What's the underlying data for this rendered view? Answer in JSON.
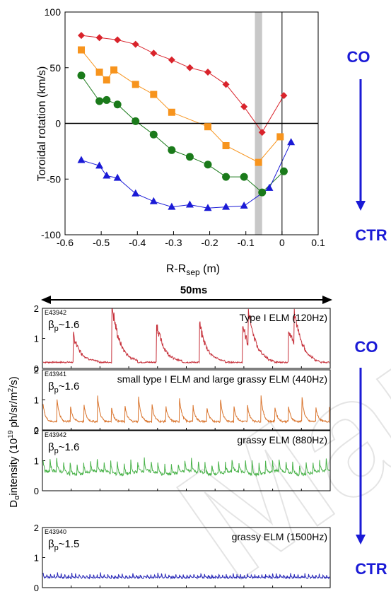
{
  "chart_data": [
    {
      "type": "line",
      "xlabel": "R-R",
      "xlabel_sub": "sep",
      "xlabel_unit": " (m)",
      "ylabel": "Toroidal rotation (km/s)",
      "xlim": [
        -0.6,
        0.1
      ],
      "ylim": [
        -100,
        100
      ],
      "x_ticks": [
        "-0.6",
        "-0.5",
        "-0.4",
        "-0.3",
        "-0.2",
        "-0.1",
        "0",
        "0.1"
      ],
      "y_ticks": [
        "-100",
        "-50",
        "0",
        "50",
        "100"
      ],
      "shaded_region": [
        -0.075,
        -0.055
      ],
      "vertical_line": 0,
      "grid": false,
      "series": [
        {
          "marker": "diamond",
          "color": "#d9232b",
          "x": [
            -0.555,
            -0.505,
            -0.455,
            -0.405,
            -0.355,
            -0.305,
            -0.255,
            -0.205,
            -0.155,
            -0.105,
            -0.055,
            0.005
          ],
          "y": [
            79,
            77,
            75,
            71,
            63,
            57,
            50,
            46,
            35,
            15,
            -8,
            25
          ]
        },
        {
          "marker": "square",
          "color": "#f7941d",
          "x": [
            -0.555,
            -0.505,
            -0.485,
            -0.465,
            -0.405,
            -0.355,
            -0.305,
            -0.205,
            -0.155,
            -0.065,
            -0.005
          ],
          "y": [
            66,
            46,
            39,
            48,
            35,
            26,
            10,
            -3,
            -20,
            -35,
            -12
          ]
        },
        {
          "marker": "circle",
          "color": "#1a7a1a",
          "x": [
            -0.555,
            -0.505,
            -0.485,
            -0.455,
            -0.405,
            -0.355,
            -0.305,
            -0.255,
            -0.205,
            -0.155,
            -0.105,
            -0.055,
            0.005
          ],
          "y": [
            43,
            20,
            21,
            17,
            2,
            -10,
            -24,
            -30,
            -37,
            -48,
            -48,
            -62,
            -43
          ]
        },
        {
          "marker": "triangle",
          "color": "#1a1ad6",
          "x": [
            -0.555,
            -0.505,
            -0.485,
            -0.455,
            -0.405,
            -0.355,
            -0.305,
            -0.255,
            -0.205,
            -0.155,
            -0.105,
            -0.035,
            0.025
          ],
          "y": [
            -33,
            -38,
            -47,
            -49,
            -63,
            -70,
            -75,
            -73,
            -76,
            -75,
            -74,
            -58,
            -17
          ]
        }
      ]
    },
    {
      "type": "line",
      "ylabel_main": "intensity (10",
      "ylabel_sup": "19",
      "ylabel_tail": " ph/sr/m",
      "ylabel_sup2": "2",
      "ylabel_end": "/s)",
      "ylabel_prefix": "D",
      "ylabel_prefix_sub": "α",
      "time_span_label": "50ms",
      "ylim": [
        0,
        2
      ],
      "y_ticks": [
        "0",
        "1",
        "2"
      ],
      "panels": [
        {
          "shot": "E43942",
          "beta": "β",
          "beta_sub": "p",
          "beta_val": "~1.6",
          "label": "Type I ELM (120Hz)",
          "color": "#c6303a",
          "kind": "typeI"
        },
        {
          "shot": "E43941",
          "beta": "β",
          "beta_sub": "p",
          "beta_val": "~1.6",
          "label": "small type I ELM and large grassy ELM (440Hz)",
          "color": "#d9732b",
          "kind": "mixed"
        },
        {
          "shot": "E43942",
          "beta": "β",
          "beta_sub": "p",
          "beta_val": "~1.6",
          "label": "grassy ELM (880Hz)",
          "color": "#4bb34b",
          "kind": "grassy"
        },
        {
          "shot": "E43940",
          "beta": "β",
          "beta_sub": "p",
          "beta_val": "~1.5",
          "label": "grassy ELM (1500Hz)",
          "color": "#2a2ab8",
          "kind": "fine"
        }
      ]
    }
  ],
  "arrows": {
    "top": {
      "start": "CO",
      "end": "CTR"
    },
    "bottom": {
      "start": "CO",
      "end": "CTR"
    }
  },
  "colors": {
    "arrow": "#1a1ad6",
    "shade": "#c8c8c8"
  },
  "watermark": "Man"
}
